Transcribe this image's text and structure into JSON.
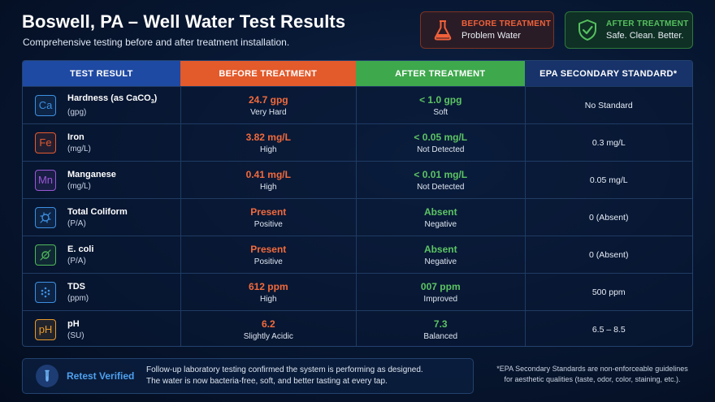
{
  "header": {
    "title": "Boswell, PA – Well Water Test Results",
    "subtitle": "Comprehensive testing before and after treatment installation."
  },
  "badges": {
    "before": {
      "title": "BEFORE TREATMENT",
      "subtitle": "Problem Water",
      "icon": "flask-icon",
      "color": "#f2613a"
    },
    "after": {
      "title": "AFTER TREATMENT",
      "subtitle": "Safe. Clean. Better.",
      "icon": "shield-check-icon",
      "color": "#55c05f"
    }
  },
  "table": {
    "headers": [
      "TEST RESULT",
      "BEFORE TREATMENT",
      "AFTER TREATMENT",
      "EPA SECONDARY STANDARD*"
    ],
    "rows": [
      {
        "icon_text": "Ca",
        "icon": "calcium-icon",
        "icon_color": "#3d8fe0",
        "name": "Hardness (as CaCO",
        "name_sub": "3",
        "name_end": ")",
        "unit": "(gpg)",
        "before": "24.7 gpg",
        "before_note": "Very Hard",
        "after": "< 1.0 gpg",
        "after_note": "Soft",
        "standard": "No Standard"
      },
      {
        "icon_text": "Fe",
        "icon": "iron-icon",
        "icon_color": "#e45a2e",
        "name": "Iron",
        "name_sub": "",
        "name_end": "",
        "unit": "(mg/L)",
        "before": "3.82 mg/L",
        "before_note": "High",
        "after": "< 0.05 mg/L",
        "after_note": "Not Detected",
        "standard": "0.3 mg/L"
      },
      {
        "icon_text": "Mn",
        "icon": "manganese-icon",
        "icon_color": "#9a58d6",
        "name": "Manganese",
        "name_sub": "",
        "name_end": "",
        "unit": "(mg/L)",
        "before": "0.41 mg/L",
        "before_note": "High",
        "after": "< 0.01 mg/L",
        "after_note": "Not Detected",
        "standard": "0.05 mg/L"
      },
      {
        "icon_text": "",
        "icon": "bacteria-icon",
        "icon_color": "#3d8fe0",
        "name": "Total Coliform",
        "name_sub": "",
        "name_end": "",
        "unit": "(P/A)",
        "before": "Present",
        "before_note": "Positive",
        "after": "Absent",
        "after_note": "Negative",
        "standard": "0 (Absent)"
      },
      {
        "icon_text": "",
        "icon": "ecoli-icon",
        "icon_color": "#4fb85a",
        "name": "E. coli",
        "name_sub": "",
        "name_end": "",
        "unit": "(P/A)",
        "before": "Present",
        "before_note": "Positive",
        "after": "Absent",
        "after_note": "Negative",
        "standard": "0 (Absent)"
      },
      {
        "icon_text": "",
        "icon": "dots-icon",
        "icon_color": "#3d8fe0",
        "name": "TDS",
        "name_sub": "",
        "name_end": "",
        "unit": "(ppm)",
        "before": "612 ppm",
        "before_note": "High",
        "after": "007 ppm",
        "after_note": "Improved",
        "standard": "500 ppm"
      },
      {
        "icon_text": "pH",
        "icon": "ph-icon",
        "icon_color": "#e89a2c",
        "name": "pH",
        "name_sub": "",
        "name_end": "",
        "unit": "(SU)",
        "before": "6.2",
        "before_note": "Slightly Acidic",
        "after": "7.3",
        "after_note": "Balanced",
        "standard": "6.5 – 8.5"
      }
    ]
  },
  "footer": {
    "label": "Retest Verified",
    "line1": "Follow-up laboratory testing confirmed the system is performing as designed.",
    "line2": "The water is now bacteria-free, soft, and better tasting at every tap.",
    "icon": "test-tube-icon"
  },
  "note": {
    "line1": "*EPA Secondary Standards are non-enforceable guidelines",
    "line2": "for aesthetic qualities (taste, odor, color, staining, etc.)."
  }
}
